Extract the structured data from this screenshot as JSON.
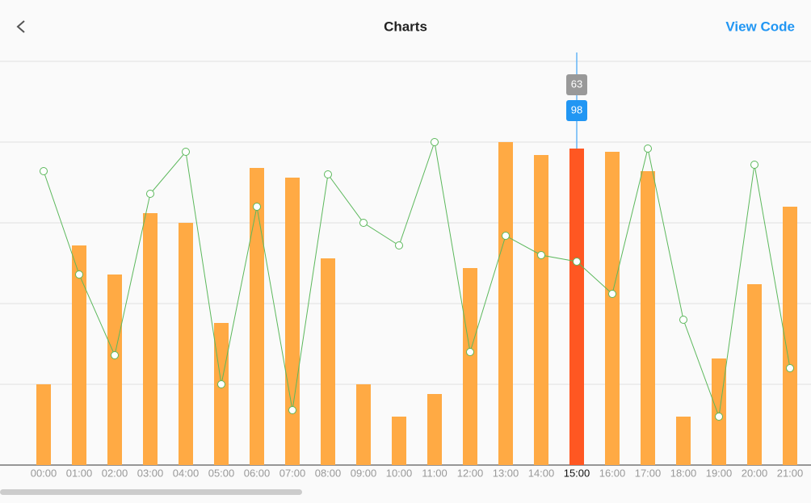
{
  "header": {
    "title": "Charts",
    "action": "View Code"
  },
  "chart_data": {
    "type": "bar",
    "categories": [
      "00:00",
      "01:00",
      "02:00",
      "03:00",
      "04:00",
      "05:00",
      "06:00",
      "07:00",
      "08:00",
      "09:00",
      "10:00",
      "11:00",
      "12:00",
      "13:00",
      "14:00",
      "15:00",
      "16:00",
      "17:00",
      "18:00",
      "19:00",
      "20:00",
      "21:00"
    ],
    "series": [
      {
        "type": "bar",
        "color": "#ffaa44",
        "highlight_color": "#ff5722",
        "values": [
          25,
          68,
          59,
          78,
          75,
          44,
          92,
          89,
          64,
          25,
          15,
          22,
          61,
          100,
          96,
          98,
          97,
          91,
          15,
          33,
          56,
          80
        ]
      },
      {
        "type": "line",
        "color": "#5cb85c",
        "values": [
          91,
          59,
          34,
          84,
          97,
          25,
          80,
          17,
          90,
          75,
          68,
          100,
          35,
          71,
          65,
          63,
          53,
          98,
          45,
          15,
          93,
          30
        ]
      }
    ],
    "selected_index": 15,
    "ylim": [
      0,
      125
    ],
    "yticks": [
      0,
      25,
      50,
      75,
      100,
      125
    ],
    "grid": true
  }
}
